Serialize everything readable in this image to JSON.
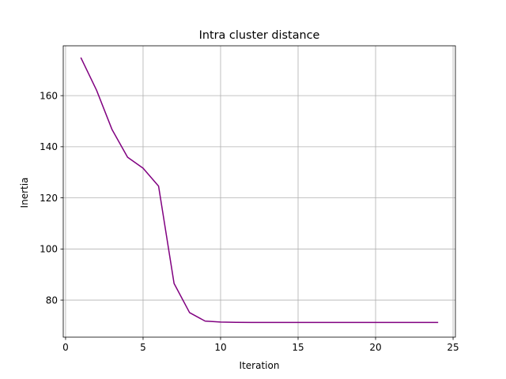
{
  "chart_data": {
    "type": "line",
    "title": "Intra cluster distance",
    "xlabel": "Iteration",
    "ylabel": "Inertia",
    "xlim": [
      -0.15,
      25.15
    ],
    "ylim": [
      65.5,
      179.5
    ],
    "xticks": [
      0,
      5,
      10,
      15,
      20,
      25
    ],
    "yticks": [
      80,
      100,
      120,
      140,
      160
    ],
    "grid": true,
    "line_color": "#800080",
    "series": [
      {
        "x": [
          1,
          2,
          3,
          4,
          5,
          6,
          7,
          8,
          9,
          10,
          11,
          12,
          13,
          14,
          15,
          16,
          17,
          18,
          19,
          20,
          21,
          22,
          23,
          24
        ],
        "values": [
          174.7,
          162.1,
          146.7,
          135.9,
          131.6,
          124.6,
          86.5,
          75.1,
          71.8,
          71.4,
          71.3,
          71.25,
          71.25,
          71.25,
          71.25,
          71.25,
          71.25,
          71.25,
          71.25,
          71.25,
          71.25,
          71.25,
          71.25,
          71.25
        ]
      }
    ]
  }
}
